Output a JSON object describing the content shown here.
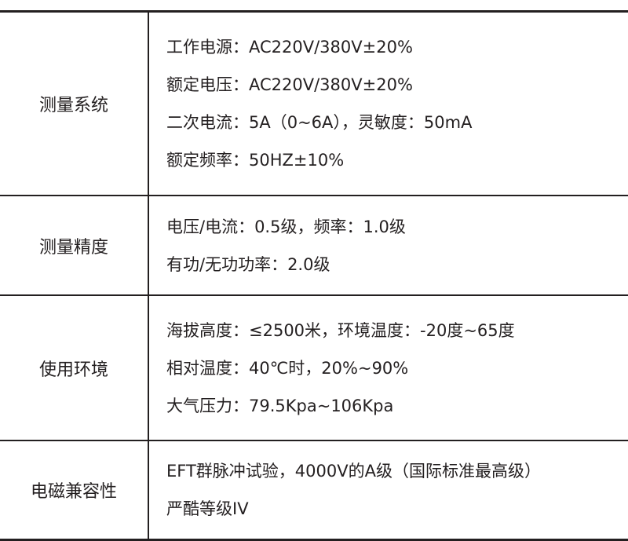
{
  "rows": [
    {
      "label": "测量系统",
      "lines": [
        "工作电源：AC220V/380V±20%",
        "额定电压：AC220V/380V±20%",
        "二次电流：5A（0~6A），灵敏度：50mA",
        "额定频率：50HZ±10%"
      ]
    },
    {
      "label": "测量精度",
      "lines": [
        "电压/电流：0.5级，频率：1.0级",
        "有功/无功功率：2.0级"
      ]
    },
    {
      "label": "使用环境",
      "lines": [
        "海拔高度：≤2500米，环境温度：-20度~65度",
        "相对温度：40℃时，20%~90%",
        "大气压力：79.5Kpa~106Kpa"
      ]
    },
    {
      "label": "电磁兼容性",
      "lines": [
        "EFT群脉冲试验，4000V的A级（国际标准最高级）",
        "严酷等级IV"
      ]
    }
  ]
}
